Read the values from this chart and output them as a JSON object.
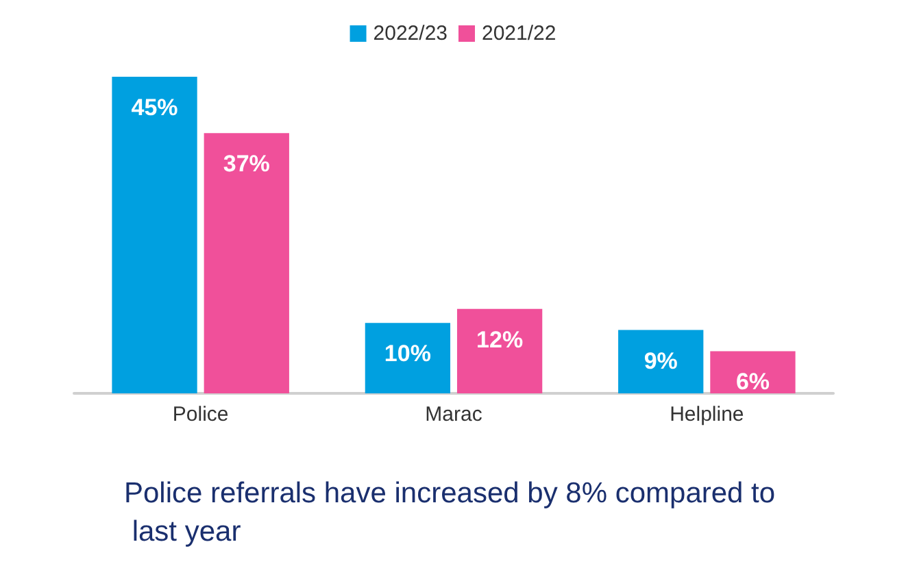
{
  "chart_data": {
    "type": "bar",
    "categories": [
      "Police",
      "Marac",
      "Helpline"
    ],
    "series": [
      {
        "name": "2022/23",
        "color": "#00a0e0",
        "values": [
          45,
          10,
          9
        ],
        "value_labels": [
          "45%",
          "10%",
          "9%"
        ]
      },
      {
        "name": "2021/22",
        "color": "#f0509a",
        "values": [
          37,
          12,
          6
        ],
        "value_labels": [
          "37%",
          "12%",
          "6%"
        ]
      }
    ],
    "legend": "top",
    "annotations": [
      "Police referrals have increased by 8% compared to last year"
    ]
  }
}
